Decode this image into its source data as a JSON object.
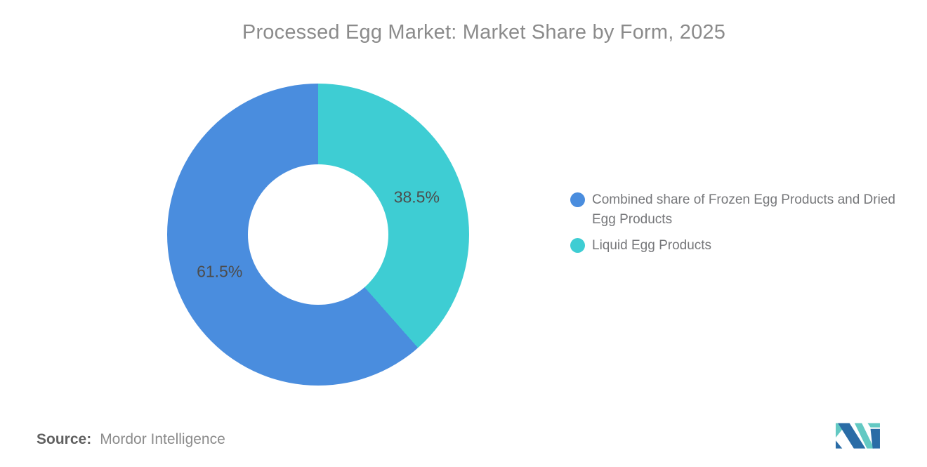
{
  "chart_data": {
    "type": "pie",
    "subtype": "donut",
    "title": "Processed Egg Market: Market Share by Form, 2025",
    "unit": "%",
    "slices": [
      {
        "label": "Combined share of Frozen Egg Products and Dried Egg Products",
        "value": 61.5,
        "color": "#4a8dde"
      },
      {
        "label": "Liquid Egg Products",
        "value": 38.5,
        "color": "#3ecdd3"
      }
    ],
    "data_labels": [
      "61.5%",
      "38.5%"
    ],
    "label_color": "#4c4c4c",
    "legend_position": "right",
    "hole_ratio": 0.465,
    "start_angle_deg": 0,
    "direction": "clockwise"
  },
  "footer": {
    "source_label": "Source:",
    "source_value": "Mordor Intelligence"
  },
  "logo": {
    "name": "mordor-intelligence-logo",
    "color_blue": "#2a6ca6",
    "color_teal": "#63c9c3"
  }
}
